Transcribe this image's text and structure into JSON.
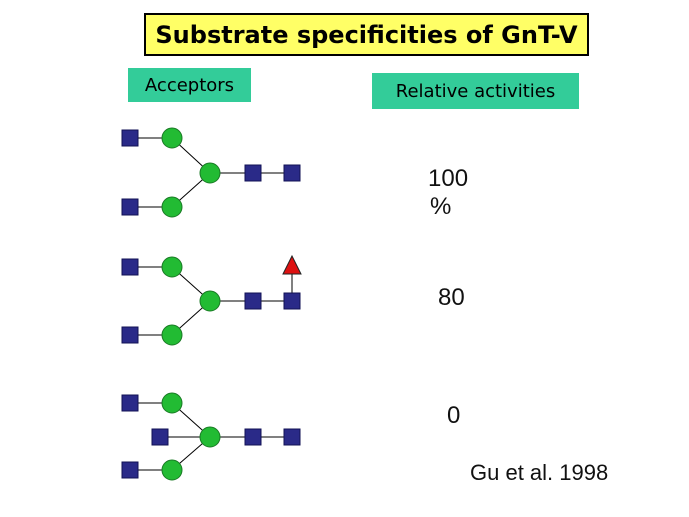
{
  "title": "Substrate specificities of GnT-V",
  "headers": {
    "acceptors": "Acceptors",
    "relative_activities": "Relative activities"
  },
  "activities": [
    {
      "line1": "100",
      "line2": "%"
    },
    {
      "line1": "80",
      "line2": ""
    },
    {
      "line1": "0",
      "line2": ""
    }
  ],
  "reference": "Gu et al. 1998",
  "colors": {
    "title_bg": "#ffff66",
    "label_bg": "#33cc99",
    "circle_green": "#22bb33",
    "square_blue": "#2a2a88",
    "triangle_red": "#dd1111"
  }
}
